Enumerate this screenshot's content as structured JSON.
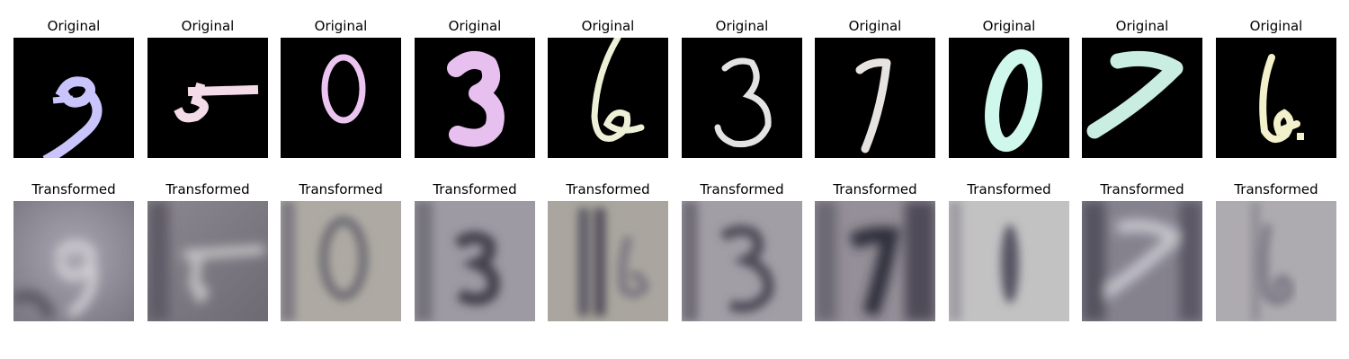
{
  "figure": {
    "top_row_title": "Original",
    "bottom_row_title": "Transformed",
    "columns": [
      {
        "digit": "9",
        "stroke_color": "#c9c4fb",
        "transformed_tint": "#9f9aa6"
      },
      {
        "digit": "5",
        "stroke_color": "#f4dbe8",
        "transformed_tint": "#8a868a"
      },
      {
        "digit": "0",
        "stroke_color": "#ecc4f0",
        "transformed_tint": "#a6a39e"
      },
      {
        "digit": "3",
        "stroke_color": "#e8c0ef",
        "transformed_tint": "#9b97a0"
      },
      {
        "digit": "6",
        "stroke_color": "#edf0d6",
        "transformed_tint": "#a8a49e"
      },
      {
        "digit": "3",
        "stroke_color": "#e3e3e3",
        "transformed_tint": "#9a98a2"
      },
      {
        "digit": "7",
        "stroke_color": "#e6e3e0",
        "transformed_tint": "#8f8b95"
      },
      {
        "digit": "0",
        "stroke_color": "#cff7ec",
        "transformed_tint": "#bcbcbe"
      },
      {
        "digit": "7",
        "stroke_color": "#c9ede0",
        "transformed_tint": "#878592"
      },
      {
        "digit": "6",
        "stroke_color": "#f3f1cb",
        "transformed_tint": "#a7a4a8"
      }
    ]
  }
}
